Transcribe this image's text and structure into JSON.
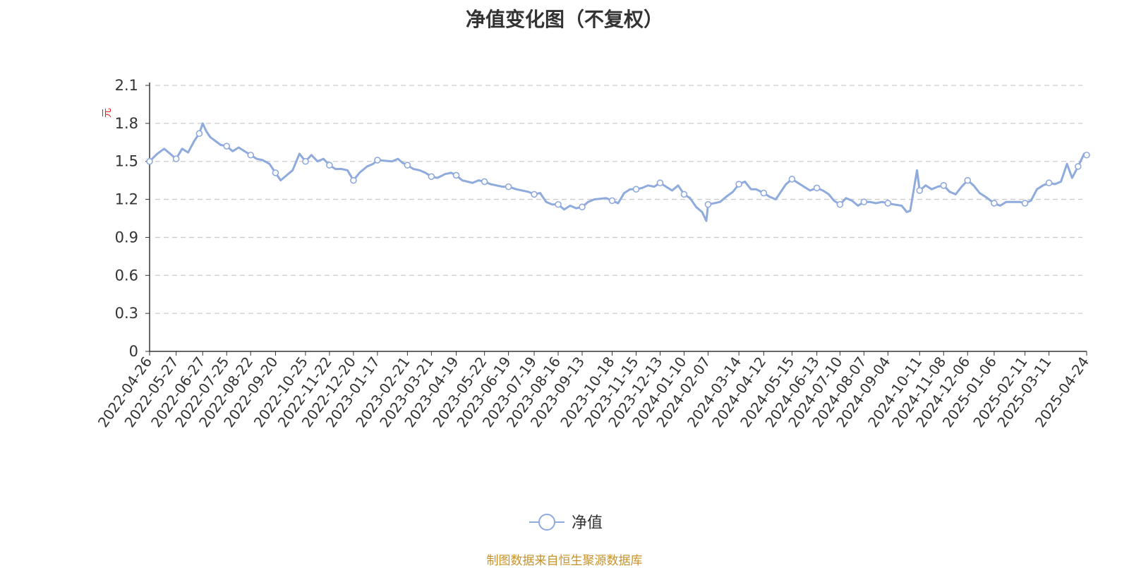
{
  "colors": {
    "line": "#8faadc",
    "title": "#333333",
    "unit": "#e0261f",
    "footer": "#c8922a",
    "axis": "#333333",
    "grid": "#cccccc"
  },
  "footer": "制图数据来自恒生聚源数据库",
  "chart_data": {
    "type": "line",
    "title": "净值变化图（不复权）",
    "ylabel": "元",
    "xlabel": "",
    "ylim": [
      0,
      2.1
    ],
    "y_ticks": [
      "0",
      "0.3",
      "0.6",
      "0.9",
      "1.2",
      "1.5",
      "1.8",
      "2.1"
    ],
    "grid": true,
    "legend": {
      "position": "bottom-center",
      "entries": [
        "净值"
      ]
    },
    "x_ticks": [
      "2022-04-26",
      "2022-05-27",
      "2022-06-27",
      "2022-07-25",
      "2022-08-22",
      "2022-09-20",
      "2022-10-25",
      "2022-11-22",
      "2022-12-20",
      "2023-01-17",
      "2023-02-21",
      "2023-03-21",
      "2023-04-19",
      "2023-05-22",
      "2023-06-19",
      "2023-07-19",
      "2023-08-16",
      "2023-09-13",
      "2023-10-18",
      "2023-11-15",
      "2023-12-13",
      "2024-01-10",
      "2024-02-07",
      "2024-03-14",
      "2024-04-12",
      "2024-05-15",
      "2024-06-13",
      "2024-07-10",
      "2024-08-07",
      "2024-09-04",
      "2024-10-11",
      "2024-11-08",
      "2024-12-06",
      "2025-01-06",
      "2025-02-11",
      "2025-03-11",
      "2025-04-24"
    ],
    "series": [
      {
        "name": "净值",
        "x": [
          "2022-04-26",
          "2022-05-05",
          "2022-05-13",
          "2022-05-20",
          "2022-05-27",
          "2022-06-03",
          "2022-06-10",
          "2022-06-17",
          "2022-06-23",
          "2022-06-27",
          "2022-07-01",
          "2022-07-06",
          "2022-07-12",
          "2022-07-18",
          "2022-07-25",
          "2022-08-01",
          "2022-08-08",
          "2022-08-15",
          "2022-08-22",
          "2022-08-29",
          "2022-09-05",
          "2022-09-13",
          "2022-09-20",
          "2022-09-26",
          "2022-10-10",
          "2022-10-18",
          "2022-10-25",
          "2022-11-01",
          "2022-11-08",
          "2022-11-15",
          "2022-11-22",
          "2022-11-29",
          "2022-12-06",
          "2022-12-13",
          "2022-12-20",
          "2022-12-27",
          "2023-01-05",
          "2023-01-12",
          "2023-01-17",
          "2023-02-03",
          "2023-02-10",
          "2023-02-15",
          "2023-02-21",
          "2023-02-28",
          "2023-03-07",
          "2023-03-14",
          "2023-03-21",
          "2023-03-28",
          "2023-04-06",
          "2023-04-13",
          "2023-04-19",
          "2023-04-26",
          "2023-05-08",
          "2023-05-15",
          "2023-05-22",
          "2023-05-29",
          "2023-06-05",
          "2023-06-12",
          "2023-06-19",
          "2023-06-28",
          "2023-07-05",
          "2023-07-12",
          "2023-07-19",
          "2023-07-26",
          "2023-08-02",
          "2023-08-09",
          "2023-08-16",
          "2023-08-23",
          "2023-08-30",
          "2023-09-06",
          "2023-09-13",
          "2023-09-20",
          "2023-09-27",
          "2023-10-11",
          "2023-10-18",
          "2023-10-25",
          "2023-11-01",
          "2023-11-08",
          "2023-11-15",
          "2023-11-22",
          "2023-11-29",
          "2023-12-06",
          "2023-12-13",
          "2023-12-20",
          "2023-12-27",
          "2024-01-03",
          "2024-01-10",
          "2024-01-17",
          "2024-01-24",
          "2024-01-31",
          "2024-02-05",
          "2024-02-07",
          "2024-02-21",
          "2024-02-28",
          "2024-03-07",
          "2024-03-14",
          "2024-03-21",
          "2024-03-28",
          "2024-04-03",
          "2024-04-12",
          "2024-04-19",
          "2024-04-26",
          "2024-05-08",
          "2024-05-15",
          "2024-05-22",
          "2024-05-29",
          "2024-06-05",
          "2024-06-13",
          "2024-06-20",
          "2024-06-27",
          "2024-07-03",
          "2024-07-10",
          "2024-07-17",
          "2024-07-24",
          "2024-07-31",
          "2024-08-07",
          "2024-08-14",
          "2024-08-21",
          "2024-08-28",
          "2024-09-04",
          "2024-09-11",
          "2024-09-20",
          "2024-09-26",
          "2024-09-30",
          "2024-10-08",
          "2024-10-11",
          "2024-10-18",
          "2024-10-25",
          "2024-11-01",
          "2024-11-08",
          "2024-11-15",
          "2024-11-22",
          "2024-11-29",
          "2024-12-06",
          "2024-12-13",
          "2024-12-20",
          "2024-12-27",
          "2025-01-06",
          "2025-01-13",
          "2025-01-20",
          "2025-02-05",
          "2025-02-11",
          "2025-02-18",
          "2025-02-25",
          "2025-03-04",
          "2025-03-11",
          "2025-03-18",
          "2025-03-25",
          "2025-04-01",
          "2025-04-07",
          "2025-04-14",
          "2025-04-21",
          "2025-04-24"
        ],
        "values": [
          1.5,
          1.56,
          1.6,
          1.56,
          1.52,
          1.6,
          1.57,
          1.66,
          1.72,
          1.8,
          1.74,
          1.69,
          1.66,
          1.63,
          1.62,
          1.58,
          1.61,
          1.58,
          1.55,
          1.52,
          1.51,
          1.48,
          1.41,
          1.35,
          1.43,
          1.56,
          1.5,
          1.55,
          1.5,
          1.52,
          1.47,
          1.44,
          1.44,
          1.43,
          1.35,
          1.41,
          1.46,
          1.48,
          1.51,
          1.5,
          1.52,
          1.49,
          1.47,
          1.44,
          1.43,
          1.41,
          1.38,
          1.37,
          1.4,
          1.41,
          1.39,
          1.35,
          1.33,
          1.35,
          1.34,
          1.32,
          1.31,
          1.3,
          1.3,
          1.28,
          1.27,
          1.26,
          1.24,
          1.25,
          1.18,
          1.16,
          1.16,
          1.12,
          1.15,
          1.13,
          1.14,
          1.18,
          1.2,
          1.21,
          1.19,
          1.17,
          1.25,
          1.28,
          1.28,
          1.29,
          1.31,
          1.3,
          1.33,
          1.3,
          1.27,
          1.31,
          1.24,
          1.21,
          1.14,
          1.1,
          1.03,
          1.16,
          1.18,
          1.22,
          1.26,
          1.32,
          1.34,
          1.28,
          1.28,
          1.25,
          1.22,
          1.2,
          1.32,
          1.36,
          1.33,
          1.3,
          1.27,
          1.29,
          1.27,
          1.24,
          1.19,
          1.16,
          1.21,
          1.19,
          1.15,
          1.18,
          1.18,
          1.17,
          1.18,
          1.17,
          1.16,
          1.15,
          1.1,
          1.11,
          1.43,
          1.27,
          1.31,
          1.28,
          1.3,
          1.31,
          1.26,
          1.24,
          1.3,
          1.35,
          1.31,
          1.25,
          1.22,
          1.17,
          1.15,
          1.18,
          1.18,
          1.17,
          1.19,
          1.28,
          1.31,
          1.33,
          1.32,
          1.34,
          1.48,
          1.37,
          1.46,
          1.56,
          1.55
        ],
        "marker_x": [
          "2022-04-26",
          "2022-05-27",
          "2022-06-23",
          "2022-07-25",
          "2022-08-22",
          "2022-09-20",
          "2022-10-25",
          "2022-11-22",
          "2022-12-20",
          "2023-01-17",
          "2023-02-21",
          "2023-03-21",
          "2023-04-19",
          "2023-05-22",
          "2023-06-19",
          "2023-07-19",
          "2023-08-16",
          "2023-09-13",
          "2023-10-18",
          "2023-11-15",
          "2023-12-13",
          "2024-01-10",
          "2024-02-07",
          "2024-03-14",
          "2024-04-12",
          "2024-05-15",
          "2024-06-13",
          "2024-07-10",
          "2024-08-07",
          "2024-09-04",
          "2024-10-11",
          "2024-11-08",
          "2024-12-06",
          "2025-01-06",
          "2025-02-11",
          "2025-03-11",
          "2025-04-14",
          "2025-04-24"
        ]
      }
    ]
  }
}
